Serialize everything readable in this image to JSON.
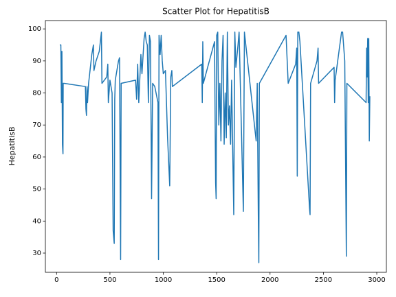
{
  "chart_data": {
    "type": "line",
    "title": "Scatter Plot for HepatitisB",
    "ylabel": "HepatitisB",
    "x": [
      30,
      40,
      45,
      50,
      55,
      60,
      62,
      70,
      270,
      275,
      280,
      285,
      290,
      300,
      330,
      345,
      350,
      370,
      400,
      420,
      425,
      470,
      480,
      485,
      500,
      520,
      530,
      540,
      545,
      550,
      580,
      590,
      600,
      605,
      740,
      750,
      760,
      770,
      790,
      800,
      820,
      830,
      840,
      850,
      860,
      870,
      880,
      890,
      900,
      920,
      950,
      955,
      960,
      970,
      980,
      990,
      1000,
      1020,
      1040,
      1060,
      1070,
      1080,
      1085,
      1360,
      1365,
      1370,
      1375,
      1480,
      1490,
      1495,
      1500,
      1510,
      1520,
      1530,
      1540,
      1550,
      1560,
      1570,
      1580,
      1590,
      1600,
      1610,
      1620,
      1630,
      1640,
      1660,
      1670,
      1680,
      1700,
      1710,
      1750,
      1760,
      1870,
      1880,
      1890,
      1895,
      1900,
      2150,
      2170,
      2240,
      2250,
      2255,
      2260,
      2270,
      2280,
      2370,
      2375,
      2380,
      2440,
      2450,
      2455,
      2600,
      2605,
      2610,
      2670,
      2680,
      2700,
      2715,
      2720,
      2900,
      2905,
      2910,
      2915,
      2920,
      2925,
      2930,
      2935
    ],
    "series": [
      {
        "color": "#1f77b4",
        "values": [
          95,
          95,
          77,
          93,
          64,
          61,
          83,
          83,
          82,
          75,
          73,
          82,
          77,
          83,
          92,
          95,
          87,
          90,
          93,
          99,
          83,
          85,
          89,
          77,
          84,
          80,
          37,
          33,
          78,
          84,
          90,
          91,
          28,
          83,
          84,
          78,
          89,
          77,
          92,
          86,
          97,
          99,
          96,
          95,
          77,
          98,
          96,
          47,
          83,
          82,
          77,
          28,
          98,
          92,
          98,
          90,
          86,
          87,
          66,
          51,
          85,
          87,
          82,
          89,
          77,
          96,
          83,
          96,
          52,
          47,
          98,
          99,
          70,
          83,
          65,
          90,
          98,
          64,
          80,
          66,
          99,
          70,
          76,
          64,
          84,
          42,
          99,
          88,
          95,
          99,
          43,
          99,
          65,
          83,
          42,
          27,
          83,
          98,
          83,
          89,
          94,
          54,
          99,
          99,
          96,
          44,
          42,
          83,
          90,
          94,
          83,
          88,
          77,
          84,
          99,
          99,
          90,
          29,
          83,
          77,
          94,
          85,
          97,
          77,
          97,
          65,
          79
        ]
      }
    ],
    "xlim": [
      -105,
      3090
    ],
    "xticks": [
      0,
      500,
      1000,
      1500,
      2000,
      2500,
      3000
    ],
    "ylim": [
      24,
      102.6
    ],
    "yticks": [
      30,
      40,
      50,
      60,
      70,
      80,
      90,
      100
    ]
  }
}
